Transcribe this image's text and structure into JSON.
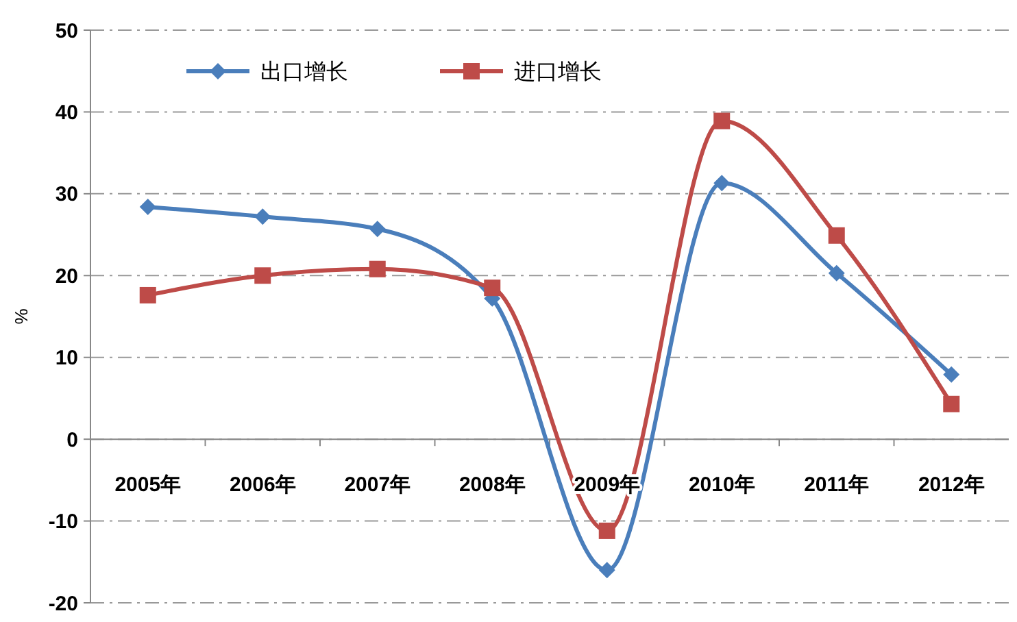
{
  "chart_data": {
    "type": "line",
    "ylabel": "%",
    "categories": [
      "2005年",
      "2006年",
      "2007年",
      "2008年",
      "2009年",
      "2010年",
      "2011年",
      "2012年"
    ],
    "series": [
      {
        "name": "出口增长",
        "color": "#4a7ebb",
        "marker": "diamond",
        "values": [
          28.4,
          27.2,
          25.7,
          17.2,
          -16.0,
          31.3,
          20.3,
          7.9
        ]
      },
      {
        "name": "进口增长",
        "color": "#be4b48",
        "marker": "square",
        "values": [
          17.6,
          20.0,
          20.8,
          18.5,
          -11.2,
          38.9,
          24.9,
          4.3
        ]
      }
    ],
    "ylim": [
      -20,
      50
    ],
    "yticks": [
      -20,
      -10,
      0,
      10,
      20,
      30,
      40,
      50
    ],
    "grid": "y",
    "legend": "top left"
  }
}
